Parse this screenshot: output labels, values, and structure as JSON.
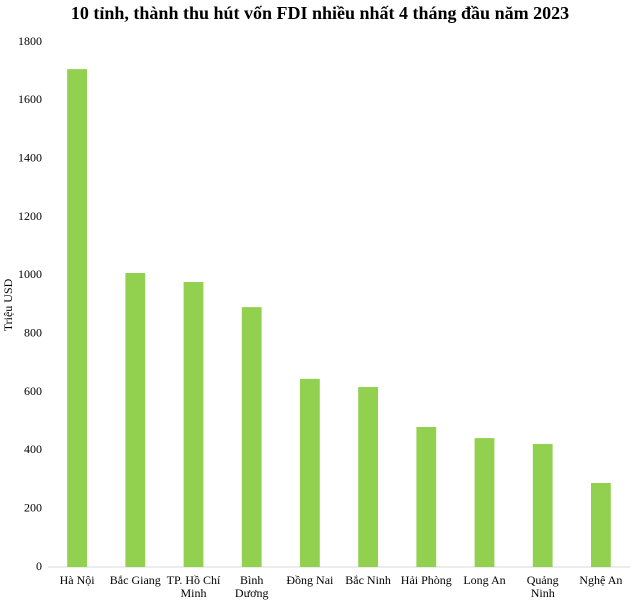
{
  "chart_data": {
    "type": "bar",
    "title": "10 tỉnh, thành thu hút vốn FDI nhiều nhất 4 tháng đầu năm 2023",
    "y_label": "Triệu USD",
    "categories": [
      "Hà Nội",
      "Bắc Giang",
      "TP. Hồ Chí Minh",
      "Bình Dương",
      "Đồng Nai",
      "Bắc Ninh",
      "Hải Phòng",
      "Long An",
      "Quảng Ninh",
      "Nghệ An"
    ],
    "values": [
      1707,
      1008,
      977,
      891,
      645,
      617,
      480,
      442,
      422,
      288
    ],
    "color": "#92d050",
    "ylim": [
      0,
      1800
    ],
    "yticks": [
      0,
      200,
      400,
      600,
      800,
      1000,
      1200,
      1400,
      1600,
      1800
    ],
    "grid": false
  }
}
